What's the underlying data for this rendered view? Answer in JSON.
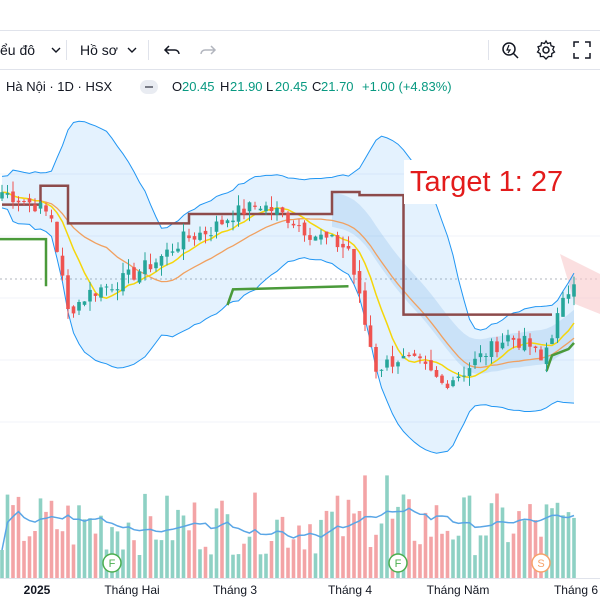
{
  "toolbar": {
    "chart_menu_label": "ểu đô",
    "template_label": "Hồ sơ",
    "icons": [
      "chevron-down-icon",
      "undo-icon",
      "redo-icon",
      "quick-search-icon",
      "gear-icon",
      "fullscreen-icon"
    ]
  },
  "legend": {
    "symbol": "Hà Nội · 1D · HSX",
    "o_label": "O",
    "o_value": "20.45",
    "h_label": "H",
    "h_value": "21.90",
    "l_label": "L",
    "l_value": "20.45",
    "c_label": "C",
    "c_value": "21.70",
    "change": "+1.00 (+4.83%)"
  },
  "annotation": {
    "text": "Target 1: 27"
  },
  "colors": {
    "up": "#26a69a",
    "down": "#ef5350",
    "bb_fill": "#2196f3",
    "ma_fast": "#f5d60b",
    "ma_slow": "#f0a060",
    "resistance": "#8d4b4b",
    "support": "#4a9a3a",
    "vol_up": "#8ed1c4",
    "vol_down": "#f3a4a6",
    "vol_ma": "#5aa6e6",
    "marker_green": "#4caf50",
    "marker_orange": "#f7a26b"
  },
  "chart_data": {
    "type": "candlestick",
    "y_range": [
      14.5,
      25.0
    ],
    "x_labels": [
      "2025",
      "Tháng Hai",
      "Tháng 3",
      "Tháng 4",
      "Tháng Năm",
      "Tháng 6"
    ],
    "event_markers": [
      {
        "label": "F",
        "color": "green",
        "index": 20
      },
      {
        "label": "F",
        "color": "green",
        "index": 72
      },
      {
        "label": "S",
        "color": "orange",
        "index": 98
      }
    ]
  }
}
